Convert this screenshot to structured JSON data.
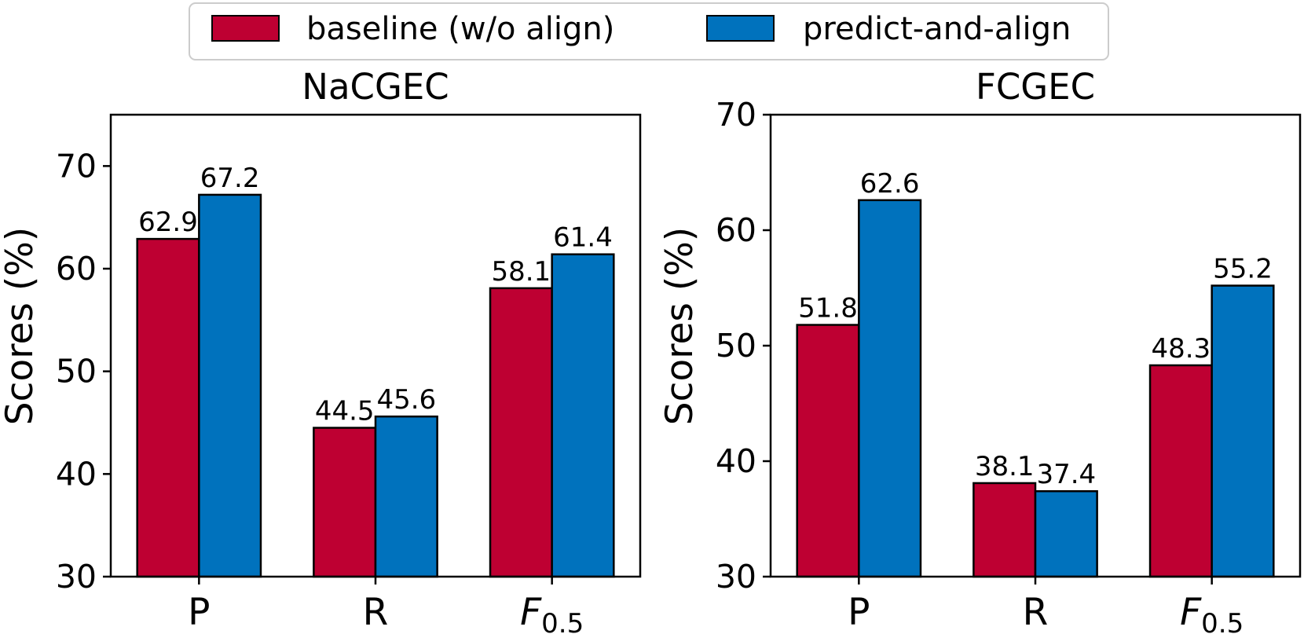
{
  "legend": {
    "placement": "top-center",
    "entries": [
      {
        "label": "baseline (w/o align)",
        "color": "#BE0032"
      },
      {
        "label": "predict-and-align",
        "color": "#0072BD"
      }
    ]
  },
  "chart_data": [
    {
      "type": "bar",
      "title": "NaCGEC",
      "ylabel": "Scores (%)",
      "xlabel": "",
      "categories": [
        "P",
        "R",
        "F0.5"
      ],
      "ylim": [
        30,
        75
      ],
      "yticks": [
        30,
        40,
        50,
        60,
        70
      ],
      "grid": false,
      "series": [
        {
          "name": "baseline (w/o align)",
          "color": "#BE0032",
          "values": [
            62.9,
            44.5,
            58.1
          ]
        },
        {
          "name": "predict-and-align",
          "color": "#0072BD",
          "values": [
            67.2,
            45.6,
            61.4
          ]
        }
      ]
    },
    {
      "type": "bar",
      "title": "FCGEC",
      "ylabel": "Scores (%)",
      "xlabel": "",
      "categories": [
        "P",
        "R",
        "F0.5"
      ],
      "ylim": [
        30,
        70
      ],
      "yticks": [
        30,
        40,
        50,
        60,
        70
      ],
      "grid": false,
      "series": [
        {
          "name": "baseline (w/o align)",
          "color": "#BE0032",
          "values": [
            51.8,
            38.1,
            48.3
          ]
        },
        {
          "name": "predict-and-align",
          "color": "#0072BD",
          "values": [
            62.6,
            37.4,
            55.2
          ]
        }
      ]
    }
  ]
}
